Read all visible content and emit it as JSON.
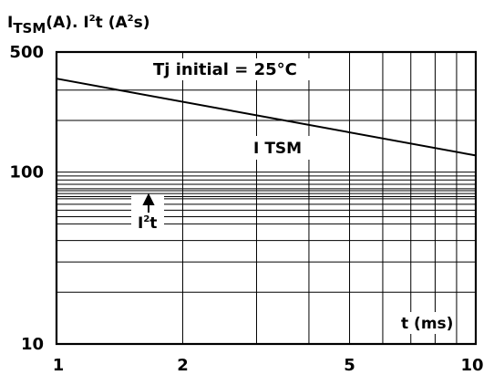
{
  "chart_data": {
    "type": "line",
    "x_scale": "log",
    "y_scale": "log",
    "xlim": [
      1,
      10
    ],
    "ylim": [
      10,
      500
    ],
    "y_axis_title": {
      "prefix": "I",
      "sub": "TSM",
      "unit_open": "(A). I",
      "sup_1": "2",
      "unit_mid": "t (A",
      "sup_2": "2",
      "unit_close": "s)"
    },
    "x_axis_title": "t (ms)",
    "x_ticks": [
      {
        "value": 1,
        "label": "1"
      },
      {
        "value": 2,
        "label": "2"
      },
      {
        "value": 5,
        "label": "5"
      },
      {
        "value": 10,
        "label": "10"
      }
    ],
    "y_ticks": [
      {
        "value": 10,
        "label": "10"
      },
      {
        "value": 100,
        "label": "100"
      },
      {
        "value": 500,
        "label": "500"
      }
    ],
    "x_grid": [
      2,
      3,
      4,
      5,
      6,
      7,
      8,
      9
    ],
    "y_grid": [
      20,
      30,
      40,
      50,
      55,
      60,
      65,
      70,
      72,
      75,
      78,
      80,
      85,
      90,
      95,
      200,
      300
    ],
    "annotation": "Tj initial = 25°C",
    "series": [
      {
        "name": "ITSM",
        "label_main": "I",
        "label_sub": "TSM",
        "x": [
          1,
          10
        ],
        "y": [
          350,
          125
        ]
      }
    ],
    "i2t_label": {
      "main": "I",
      "sup": "2",
      "tail": "t"
    },
    "grid": true,
    "legend": "none"
  }
}
